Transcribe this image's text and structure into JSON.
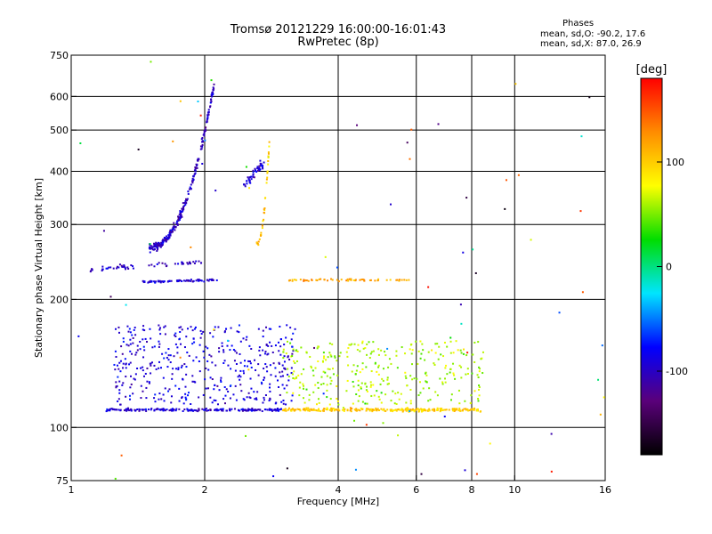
{
  "figure": {
    "title": "Tromsø 20121229 16:00:00-16:01:43",
    "subtitle": "RwPretec (8p)",
    "phases": {
      "heading": "Phases",
      "line_o": "mean, sd,O: -90.2, 17.6",
      "line_x": "mean, sd,X:  87.0, 26.9"
    }
  },
  "chart_data": {
    "type": "scatter",
    "xlabel": "Frequency [MHz]",
    "ylabel": "Stationary phase Virtual Height [km]",
    "x_scale": "log",
    "y_scale": "log",
    "xlim": [
      1,
      16
    ],
    "ylim": [
      75,
      750
    ],
    "x_ticks": [
      1,
      2,
      4,
      6,
      8,
      10,
      16
    ],
    "y_ticks": [
      75,
      100,
      200,
      300,
      400,
      500,
      600,
      750
    ],
    "x_grid": [
      2,
      4,
      6,
      8,
      10
    ],
    "y_grid": [
      100,
      200,
      300,
      400,
      500,
      600
    ],
    "grid": true,
    "colorbar": {
      "label": "[deg]",
      "range": [
        -180,
        180
      ],
      "ticks": [
        -100,
        0,
        100
      ],
      "colormap": [
        "#000000",
        "#5a007a",
        "#0000ff",
        "#00e5ff",
        "#00dd00",
        "#ffff00",
        "#ff8c00",
        "#ff0000"
      ]
    },
    "clusters": [
      {
        "desc": "E trace",
        "color": -95,
        "x_from": 1.2,
        "x_to": 3.0,
        "h_from": 110,
        "h_to": 110,
        "n": 200,
        "spread": 0.012
      },
      {
        "desc": "E trace high f",
        "color": 100,
        "x_from": 3.0,
        "x_to": 8.4,
        "h_from": 110,
        "h_to": 110,
        "n": 260,
        "spread": 0.015
      },
      {
        "desc": "E scatter low",
        "color": -90,
        "x_from": 1.25,
        "x_to": 3.2,
        "h_from": 113,
        "h_to": 175,
        "n": 420,
        "spread": 0
      },
      {
        "desc": "E scatter high",
        "color": 60,
        "x_from": 3.0,
        "x_to": 8.5,
        "h_from": 113,
        "h_to": 160,
        "n": 320,
        "spread": 0
      },
      {
        "desc": "F lower ridge",
        "color": -100,
        "x_from": 1.1,
        "x_to": 2.0,
        "h_from": 235,
        "h_to": 245,
        "n": 60,
        "spread": 0.02
      },
      {
        "desc": "F lower trace",
        "color": -95,
        "x_from": 1.45,
        "x_to": 2.15,
        "h_from": 220,
        "h_to": 222,
        "n": 70,
        "spread": 0.01
      },
      {
        "desc": "F lower trace high f",
        "color": 120,
        "x_from": 3.1,
        "x_to": 5.8,
        "h_from": 222,
        "h_to": 222,
        "n": 60,
        "spread": 0.01
      },
      {
        "desc": "F cusp O",
        "color": -100,
        "x_from": 1.5,
        "x_to": 2.1,
        "h_from": 265,
        "h_to": 640,
        "n": 260,
        "spread": 0.04,
        "curve": true
      },
      {
        "desc": "F cusp X",
        "color": -95,
        "x_from": 2.45,
        "x_to": 2.72,
        "h_from": 370,
        "h_to": 420,
        "n": 50,
        "spread": 0.04
      },
      {
        "desc": "F cusp X upper",
        "color": 100,
        "x_from": 2.62,
        "x_to": 2.8,
        "h_from": 270,
        "h_to": 480,
        "n": 40,
        "spread": 0.03,
        "curve": true
      }
    ]
  }
}
